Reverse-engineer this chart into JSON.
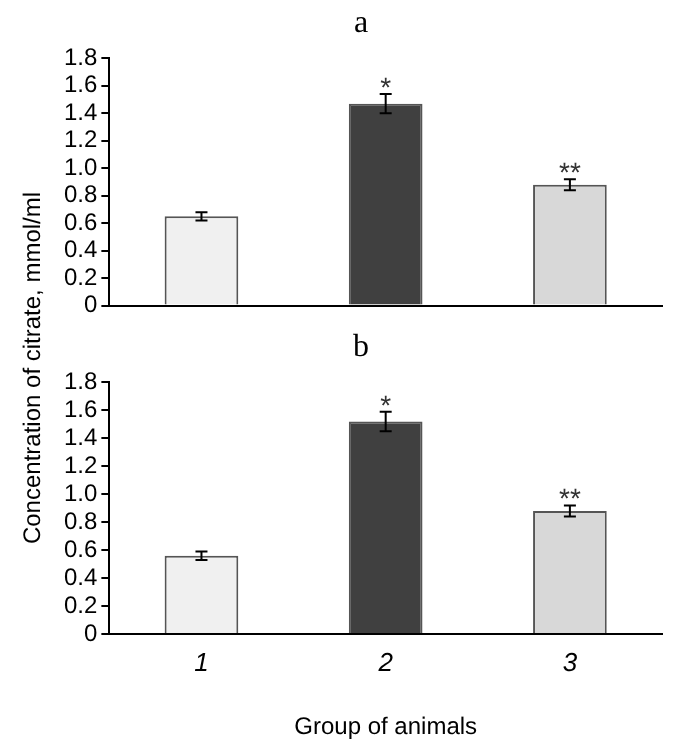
{
  "chart_data": [
    {
      "type": "bar",
      "title": "a",
      "ylabel": "Concentration of citrate, mmol/ml",
      "categories": [
        "1",
        "2",
        "3"
      ],
      "values": [
        0.65,
        1.47,
        0.88
      ],
      "errors": [
        0.03,
        0.07,
        0.04
      ],
      "colors": [
        "#f0f0f0",
        "#404040",
        "#d8d8d8"
      ],
      "ylim": [
        0,
        1.8
      ],
      "yticks": [
        0,
        {
          "value": 0.2,
          "label": "0.2"
        },
        {
          "value": 0.4,
          "label": "0.4"
        },
        {
          "value": 0.6,
          "label": "0.6"
        },
        {
          "value": 0.8,
          "label": "0.8"
        },
        {
          "value": 1,
          "label": "1.0"
        },
        {
          "value": 1.2,
          "label": "1.2"
        },
        {
          "value": 1.4,
          "label": "1.4"
        },
        {
          "value": 1.6,
          "label": "1.6"
        },
        {
          "value": 1.8,
          "label": "1.8"
        }
      ],
      "tick_labels": "y",
      "grid": false,
      "legend": false,
      "annotations": [
        {
          "text": "*",
          "x": "2",
          "y": 1.56
        },
        {
          "text": "**",
          "x": "3",
          "y": 0.94
        }
      ]
    },
    {
      "type": "bar",
      "title": "b",
      "xlabel": "Group of animals",
      "categories": [
        "1",
        "2",
        "3"
      ],
      "values": [
        0.56,
        1.52,
        0.88
      ],
      "errors": [
        0.03,
        0.07,
        0.04
      ],
      "colors": [
        "#f0f0f0",
        "#404040",
        "#d8d8d8"
      ],
      "ylim": [
        0,
        1.8
      ],
      "yticks": [
        0,
        {
          "value": 0.2,
          "label": "0.2"
        },
        {
          "value": 0.4,
          "label": "0.4"
        },
        {
          "value": 0.6,
          "label": "0.6"
        },
        {
          "value": 0.8,
          "label": "0.8"
        },
        {
          "value": 1,
          "label": "1.0"
        },
        {
          "value": 1.2,
          "label": "1.2"
        },
        {
          "value": 1.4,
          "label": "1.4"
        },
        {
          "value": 1.6,
          "label": "1.6"
        },
        {
          "value": 1.8,
          "label": "1.8"
        }
      ],
      "grid": false,
      "legend": false,
      "annotations": [
        {
          "text": "*",
          "x": "2",
          "y": 1.61
        },
        {
          "text": "**",
          "x": "3",
          "y": 0.94
        }
      ]
    }
  ]
}
